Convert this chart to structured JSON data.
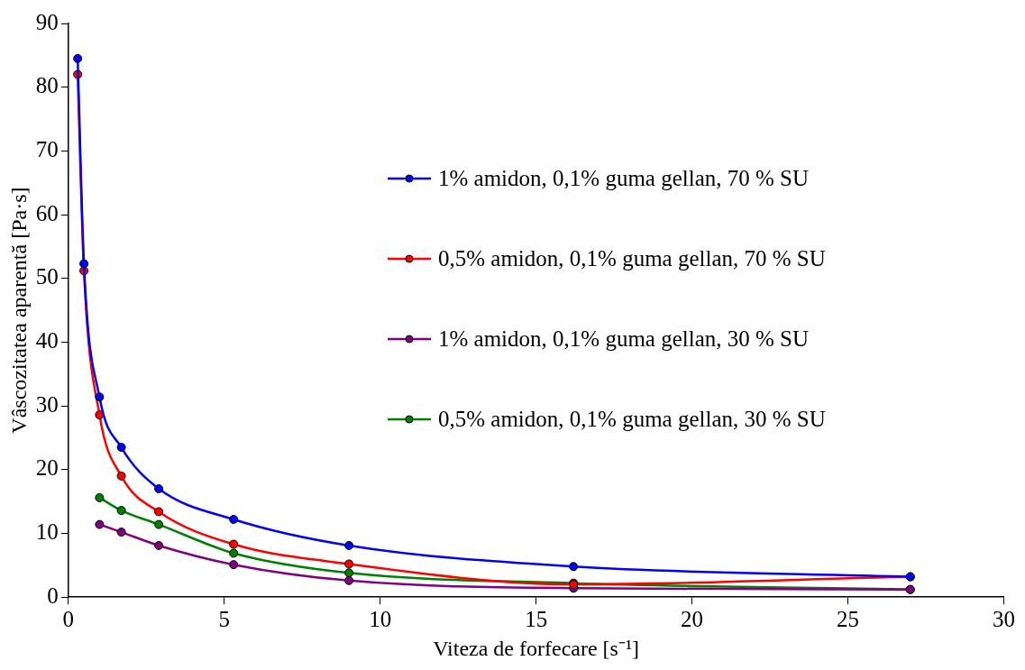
{
  "chart_data": {
    "type": "line",
    "xlabel": "Viteza de forfecare [s⁻¹]",
    "ylabel": "Vâscozitatea aparentă [Pa·s]",
    "xlim": [
      0,
      30
    ],
    "xticks": [
      0,
      5,
      10,
      15,
      20,
      25,
      30
    ],
    "ylim": [
      0,
      90
    ],
    "yticks": [
      0,
      10,
      20,
      30,
      40,
      50,
      60,
      70,
      80,
      90
    ],
    "grid": false,
    "legend": "right",
    "marker": "circle",
    "line_style": "solid",
    "series": [
      {
        "name": "1% amidon, 0,1% guma gellan, 70 % SU",
        "color": "#0000ff",
        "x": [
          0.3,
          0.5,
          1,
          1.7,
          2.9,
          5.3,
          9,
          16.2,
          27
        ],
        "values": [
          84.5,
          52.3,
          31.4,
          23.5,
          17,
          12.2,
          8.1,
          4.8,
          3.2
        ]
      },
      {
        "name": "0,5% amidon, 0,1% guma gellan, 70 % SU",
        "color": "#ff0000",
        "x": [
          0.3,
          0.5,
          1,
          1.7,
          2.9,
          5.3,
          9,
          16.2,
          27
        ],
        "values": [
          82,
          51.2,
          28.6,
          19,
          13.4,
          8.3,
          5.2,
          2,
          3.2
        ]
      },
      {
        "name": "1% amidon, 0,1% guma gellan, 30 % SU",
        "color": "#800080",
        "x": [
          1,
          1.7,
          2.9,
          5.3,
          9,
          16.2,
          27
        ],
        "values": [
          11.4,
          10.2,
          8.1,
          5.1,
          2.6,
          1.4,
          1.2
        ]
      },
      {
        "name": "0,5% amidon, 0,1% guma gellan, 30 % SU",
        "color": "#008000",
        "x": [
          1,
          1.7,
          2.9,
          5.3,
          9,
          16.2,
          27
        ],
        "values": [
          15.6,
          13.6,
          11.4,
          6.9,
          3.8,
          2.2,
          1.2
        ]
      }
    ]
  }
}
